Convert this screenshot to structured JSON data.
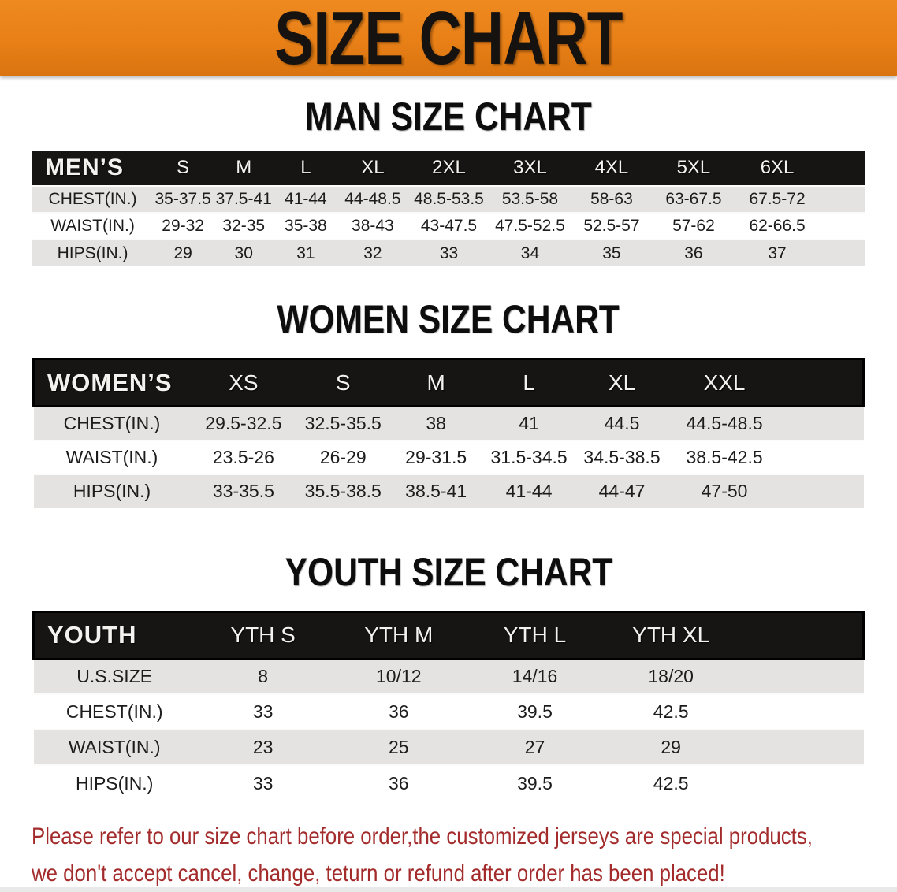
{
  "banner": {
    "title": "SIZE CHART"
  },
  "colors": {
    "banner_orange": "#e87f17",
    "header_black": "#171513",
    "row_gray": "#e4e3e1",
    "footer_red": "#a32b2b",
    "title_black": "#0d0d0d"
  },
  "tables": [
    {
      "id": "men",
      "title": "MAN SIZE CHART",
      "header_label": "MEN’S",
      "columns": [
        "S",
        "M",
        "L",
        "XL",
        "2XL",
        "3XL",
        "4XL",
        "5XL",
        "6XL"
      ],
      "rows": [
        {
          "label": "CHEST(IN.)",
          "values": [
            "35-37.5",
            "37.5-41",
            "41-44",
            "44-48.5",
            "48.5-53.5",
            "53.5-58",
            "58-63",
            "63-67.5",
            "67.5-72"
          ]
        },
        {
          "label": "WAIST(IN.)",
          "values": [
            "29-32",
            "32-35",
            "35-38",
            "38-43",
            "43-47.5",
            "47.5-52.5",
            "52.5-57",
            "57-62",
            "62-66.5"
          ]
        },
        {
          "label": "HIPS(IN.)",
          "values": [
            "29",
            "30",
            "31",
            "32",
            "33",
            "34",
            "35",
            "36",
            "37"
          ]
        }
      ]
    },
    {
      "id": "women",
      "title": "WOMEN SIZE CHART",
      "header_label": "WOMEN’S",
      "columns": [
        "XS",
        "S",
        "M",
        "L",
        "XL",
        "XXL"
      ],
      "rows": [
        {
          "label": "CHEST(IN.)",
          "values": [
            "29.5-32.5",
            "32.5-35.5",
            "38",
            "41",
            "44.5",
            "44.5-48.5"
          ]
        },
        {
          "label": "WAIST(IN.)",
          "values": [
            "23.5-26",
            "26-29",
            "29-31.5",
            "31.5-34.5",
            "34.5-38.5",
            "38.5-42.5"
          ]
        },
        {
          "label": "HIPS(IN.)",
          "values": [
            "33-35.5",
            "35.5-38.5",
            "38.5-41",
            "41-44",
            "44-47",
            "47-50"
          ]
        }
      ]
    },
    {
      "id": "youth",
      "title": "YOUTH SIZE CHART",
      "header_label": "YOUTH",
      "columns": [
        "YTH S",
        "YTH M",
        "YTH L",
        "YTH XL"
      ],
      "rows": [
        {
          "label": "U.S.SIZE",
          "values": [
            "8",
            "10/12",
            "14/16",
            "18/20"
          ]
        },
        {
          "label": "CHEST(IN.)",
          "values": [
            "33",
            "36",
            "39.5",
            "42.5"
          ]
        },
        {
          "label": "WAIST(IN.)",
          "values": [
            "23",
            "25",
            "27",
            "29"
          ]
        },
        {
          "label": "HIPS(IN.)",
          "values": [
            "33",
            "36",
            "39.5",
            "42.5"
          ]
        }
      ]
    }
  ],
  "footer": {
    "line1": "Please refer to our size chart before order,the customized jerseys are special products,",
    "line2": "we don't accept cancel, change, teturn or refund after order has been placed!"
  }
}
